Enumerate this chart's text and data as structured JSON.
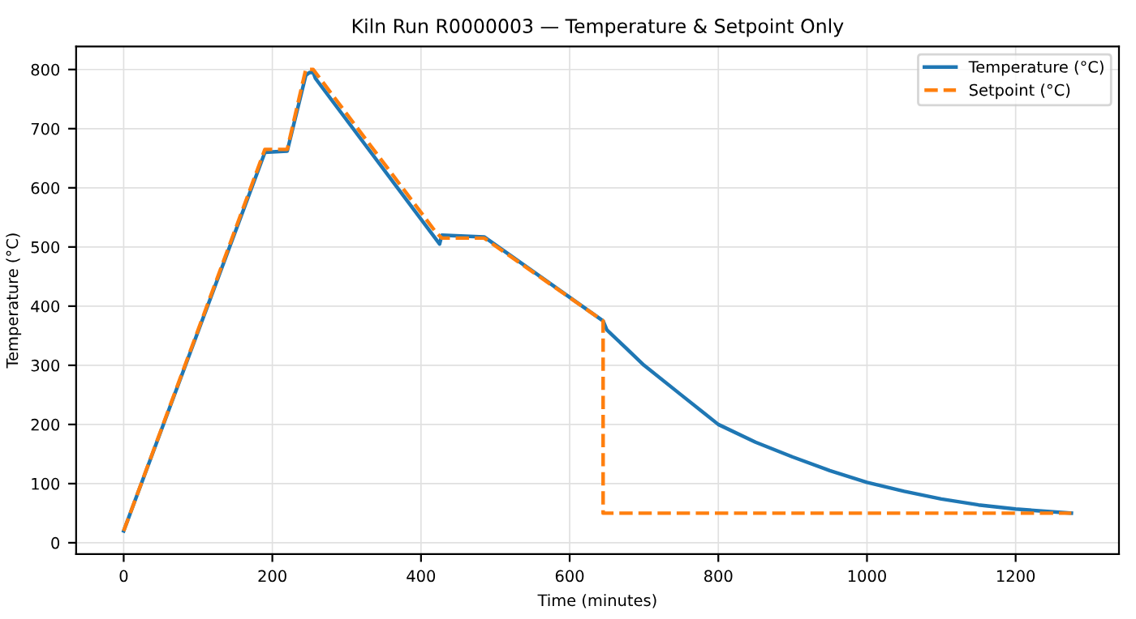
{
  "chart_data": {
    "type": "line",
    "title": "Kiln Run R0000003 — Temperature & Setpoint Only",
    "xlabel": "Time (minutes)",
    "ylabel": "Temperature (°C)",
    "series": [
      {
        "name": "Temperature (°C)",
        "color": "#1f77b4",
        "line_style": "solid",
        "x": [
          0,
          190,
          220,
          245,
          250,
          255,
          258,
          425,
          428,
          485,
          645,
          650,
          675,
          700,
          750,
          800,
          850,
          900,
          950,
          1000,
          1050,
          1100,
          1150,
          1200,
          1275
        ],
        "values": [
          20,
          660,
          662,
          790,
          795,
          795,
          785,
          505,
          520,
          517,
          375,
          360,
          330,
          300,
          250,
          200,
          170,
          145,
          122,
          102,
          87,
          74,
          64,
          57,
          50
        ]
      },
      {
        "name": "Setpoint (°C)",
        "color": "#ff7f0e",
        "line_style": "dashed",
        "x": [
          0,
          190,
          220,
          245,
          255,
          420,
          428,
          485,
          645,
          645,
          1275
        ],
        "values": [
          20,
          665,
          665,
          800,
          800,
          525,
          515,
          515,
          375,
          50,
          50
        ]
      }
    ],
    "xlim": [
      -64,
      1339
    ],
    "ylim": [
      -19,
      839
    ],
    "xticks": [
      0,
      200,
      400,
      600,
      800,
      1000,
      1200
    ],
    "yticks": [
      0,
      100,
      200,
      300,
      400,
      500,
      600,
      700,
      800
    ],
    "grid": true,
    "legend": "top right"
  }
}
